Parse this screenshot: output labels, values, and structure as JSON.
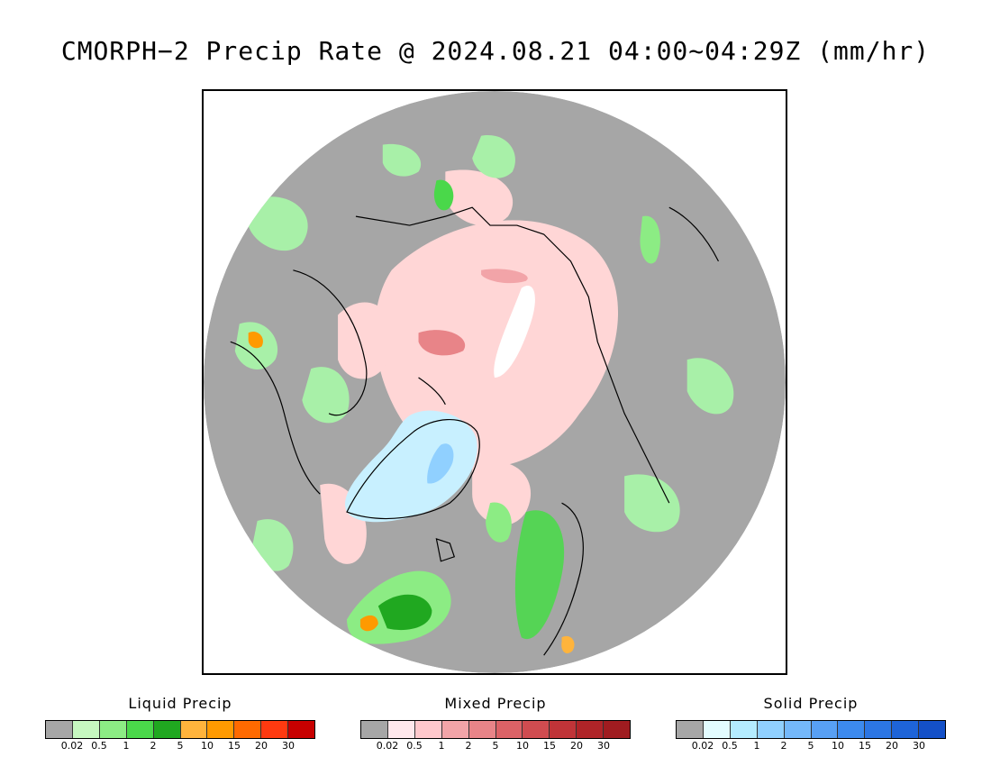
{
  "title": "CMORPH−2 Precip Rate @ 2024.08.21 04:00~04:29Z (mm/hr)",
  "map": {
    "projection": "polar-stereographic-north",
    "background_color": "#a6a6a6",
    "coastline_color": "#000000",
    "regions": [
      {
        "name": "arctic-ocean-mixed-precip",
        "type": "mixed",
        "color": "#ffd6d6"
      },
      {
        "name": "greenland-solid-precip",
        "type": "solid",
        "color": "#c8f0ff"
      },
      {
        "name": "north-atlantic-liquid-precip",
        "type": "liquid",
        "color": "#22b422"
      },
      {
        "name": "scandinavia-liquid-precip",
        "type": "liquid",
        "color": "#55d455"
      },
      {
        "name": "siberia-liquid-precip",
        "type": "liquid",
        "color": "#a8f0a8"
      }
    ]
  },
  "legends": [
    {
      "id": "liquid",
      "title": "Liquid Precip",
      "colors": [
        "#a6a6a6",
        "#c6f8c0",
        "#8cec84",
        "#4ad84a",
        "#20a820",
        "#ffb43c",
        "#ff9a00",
        "#ff6a00",
        "#ff3a10",
        "#c80000"
      ],
      "ticks": [
        "0.02",
        "0.5",
        "1",
        "2",
        "5",
        "10",
        "15",
        "20",
        "30"
      ]
    },
    {
      "id": "mixed",
      "title": "Mixed Precip",
      "colors": [
        "#a6a6a6",
        "#ffe8ec",
        "#ffc8cc",
        "#f2a4a8",
        "#e88488",
        "#dc6266",
        "#d04c50",
        "#c03438",
        "#b02428",
        "#a01c20"
      ],
      "ticks": [
        "0.02",
        "0.5",
        "1",
        "2",
        "5",
        "10",
        "15",
        "20",
        "30"
      ]
    },
    {
      "id": "solid",
      "title": "Solid Precip",
      "colors": [
        "#a6a6a6",
        "#e2fcff",
        "#b4ecff",
        "#90d0ff",
        "#74b8fa",
        "#58a0f4",
        "#3c8aee",
        "#2c76e4",
        "#1e64d8",
        "#1450c8"
      ],
      "ticks": [
        "0.02",
        "0.5",
        "1",
        "2",
        "5",
        "10",
        "15",
        "20",
        "30"
      ]
    }
  ]
}
